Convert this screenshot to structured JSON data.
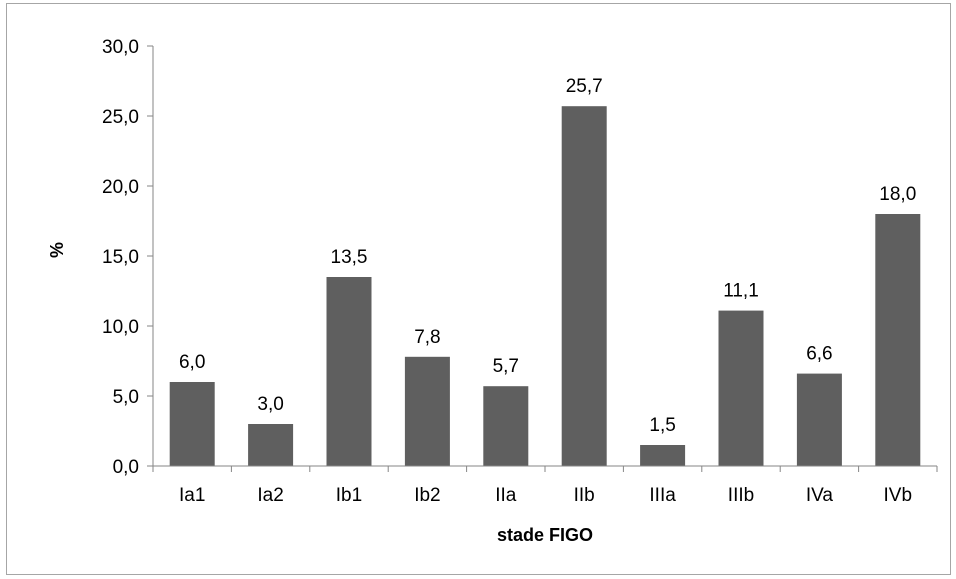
{
  "chart_data": {
    "type": "bar",
    "categories": [
      "Ia1",
      "Ia2",
      "Ib1",
      "Ib2",
      "IIa",
      "IIb",
      "IIIa",
      "IIIb",
      "IVa",
      "IVb"
    ],
    "values": [
      6.0,
      3.0,
      13.5,
      7.8,
      5.7,
      25.7,
      1.5,
      11.1,
      6.6,
      18.0
    ],
    "value_labels": [
      "6,0",
      "3,0",
      "13,5",
      "7,8",
      "5,7",
      "25,7",
      "1,5",
      "11,1",
      "6,6",
      "18,0"
    ],
    "title": "",
    "xlabel": "stade FIGO",
    "ylabel": "%",
    "ylim": [
      0,
      30
    ],
    "yticks": [
      0,
      5,
      10,
      15,
      20,
      25,
      30
    ],
    "ytick_labels": [
      "0,0",
      "5,0",
      "10,0",
      "15,0",
      "20,0",
      "25,0",
      "30,0"
    ],
    "grid": false,
    "legend": "none",
    "bar_color": "#5f5f5f",
    "axis_color": "#868686"
  }
}
